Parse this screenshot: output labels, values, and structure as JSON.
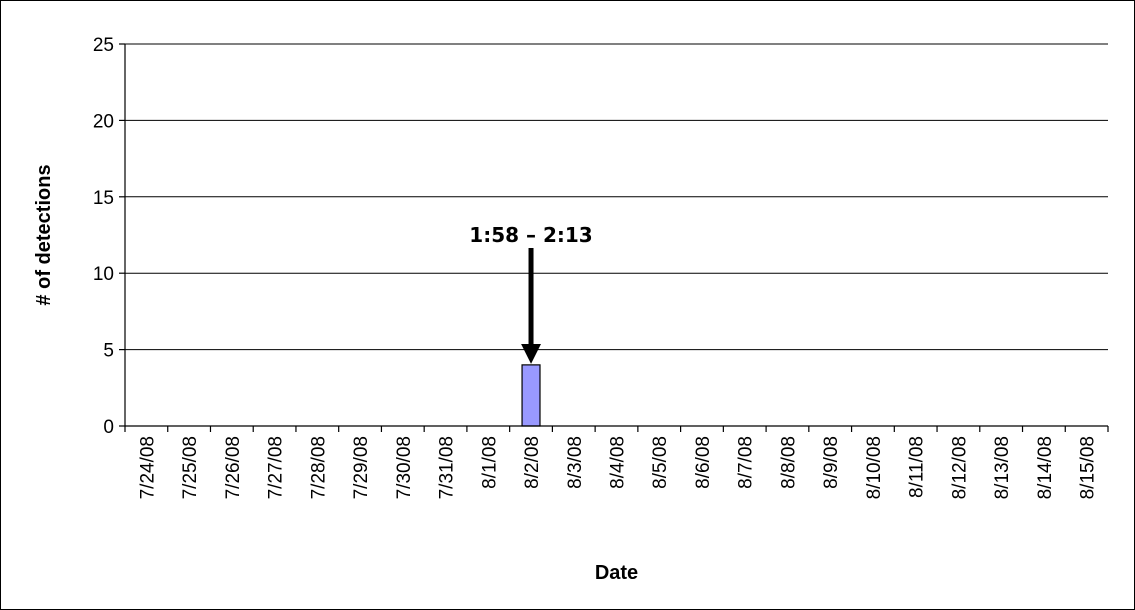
{
  "chart_data": {
    "type": "bar",
    "title": "",
    "xlabel": "Date",
    "ylabel": "# of detections",
    "ylim": [
      0,
      25
    ],
    "yticks": [
      0,
      5,
      10,
      15,
      20,
      25
    ],
    "grid": true,
    "legend": "none",
    "bar_color": "#9999FF",
    "categories": [
      "7/24/08",
      "7/25/08",
      "7/26/08",
      "7/27/08",
      "7/28/08",
      "7/29/08",
      "7/30/08",
      "7/31/08",
      "8/1/08",
      "8/2/08",
      "8/3/08",
      "8/4/08",
      "8/5/08",
      "8/6/08",
      "8/7/08",
      "8/8/08",
      "8/9/08",
      "8/10/08",
      "8/11/08",
      "8/12/08",
      "8/13/08",
      "8/14/08",
      "8/15/08"
    ],
    "values": [
      0,
      0,
      0,
      0,
      0,
      0,
      0,
      0,
      0,
      4,
      0,
      0,
      0,
      0,
      0,
      0,
      0,
      0,
      0,
      0,
      0,
      0,
      0
    ],
    "annotations": [
      {
        "text": "1:58 – 2:13",
        "category": "8/2/08"
      }
    ]
  }
}
